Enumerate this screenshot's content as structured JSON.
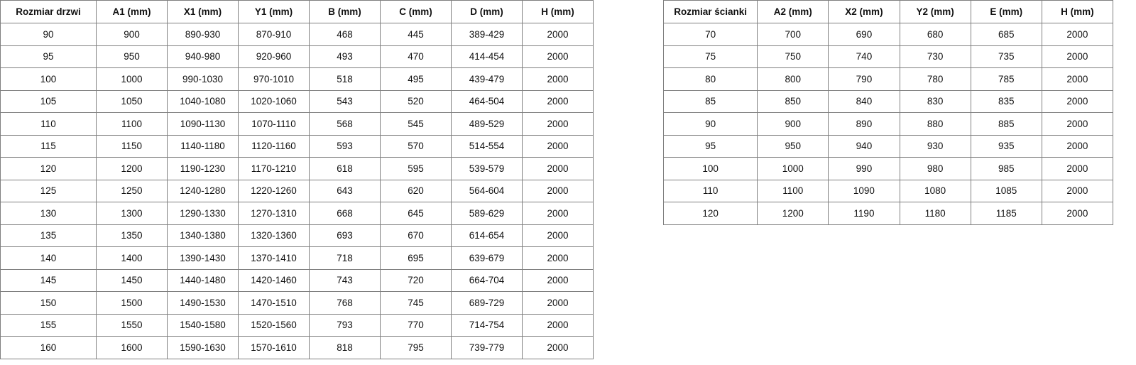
{
  "doors_table": {
    "headers": [
      "Rozmiar drzwi",
      "A1 (mm)",
      "X1 (mm)",
      "Y1 (mm)",
      "B (mm)",
      "C (mm)",
      "D (mm)",
      "H (mm)"
    ],
    "rows": [
      [
        "90",
        "900",
        "890-930",
        "870-910",
        "468",
        "445",
        "389-429",
        "2000"
      ],
      [
        "95",
        "950",
        "940-980",
        "920-960",
        "493",
        "470",
        "414-454",
        "2000"
      ],
      [
        "100",
        "1000",
        "990-1030",
        "970-1010",
        "518",
        "495",
        "439-479",
        "2000"
      ],
      [
        "105",
        "1050",
        "1040-1080",
        "1020-1060",
        "543",
        "520",
        "464-504",
        "2000"
      ],
      [
        "110",
        "1100",
        "1090-1130",
        "1070-1110",
        "568",
        "545",
        "489-529",
        "2000"
      ],
      [
        "115",
        "1150",
        "1140-1180",
        "1120-1160",
        "593",
        "570",
        "514-554",
        "2000"
      ],
      [
        "120",
        "1200",
        "1190-1230",
        "1170-1210",
        "618",
        "595",
        "539-579",
        "2000"
      ],
      [
        "125",
        "1250",
        "1240-1280",
        "1220-1260",
        "643",
        "620",
        "564-604",
        "2000"
      ],
      [
        "130",
        "1300",
        "1290-1330",
        "1270-1310",
        "668",
        "645",
        "589-629",
        "2000"
      ],
      [
        "135",
        "1350",
        "1340-1380",
        "1320-1360",
        "693",
        "670",
        "614-654",
        "2000"
      ],
      [
        "140",
        "1400",
        "1390-1430",
        "1370-1410",
        "718",
        "695",
        "639-679",
        "2000"
      ],
      [
        "145",
        "1450",
        "1440-1480",
        "1420-1460",
        "743",
        "720",
        "664-704",
        "2000"
      ],
      [
        "150",
        "1500",
        "1490-1530",
        "1470-1510",
        "768",
        "745",
        "689-729",
        "2000"
      ],
      [
        "155",
        "1550",
        "1540-1580",
        "1520-1560",
        "793",
        "770",
        "714-754",
        "2000"
      ],
      [
        "160",
        "1600",
        "1590-1630",
        "1570-1610",
        "818",
        "795",
        "739-779",
        "2000"
      ]
    ]
  },
  "walls_table": {
    "headers": [
      "Rozmiar ścianki",
      "A2 (mm)",
      "X2 (mm)",
      "Y2 (mm)",
      "E (mm)",
      "H (mm)"
    ],
    "rows": [
      [
        "70",
        "700",
        "690",
        "680",
        "685",
        "2000"
      ],
      [
        "75",
        "750",
        "740",
        "730",
        "735",
        "2000"
      ],
      [
        "80",
        "800",
        "790",
        "780",
        "785",
        "2000"
      ],
      [
        "85",
        "850",
        "840",
        "830",
        "835",
        "2000"
      ],
      [
        "90",
        "900",
        "890",
        "880",
        "885",
        "2000"
      ],
      [
        "95",
        "950",
        "940",
        "930",
        "935",
        "2000"
      ],
      [
        "100",
        "1000",
        "990",
        "980",
        "985",
        "2000"
      ],
      [
        "110",
        "1100",
        "1090",
        "1080",
        "1085",
        "2000"
      ],
      [
        "120",
        "1200",
        "1190",
        "1180",
        "1185",
        "2000"
      ]
    ]
  }
}
